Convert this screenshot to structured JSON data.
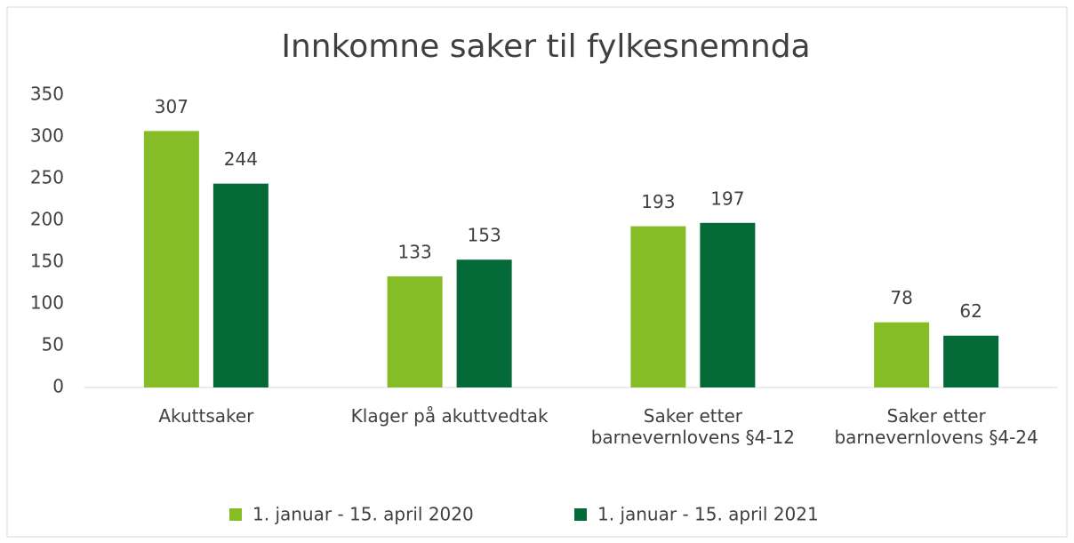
{
  "chart_data": {
    "type": "bar",
    "title": "Innkomne saker til fylkesnemnda",
    "categories": [
      "Akuttsaker",
      "Klager på akuttvedtak",
      "Saker etter barnevernlovens §4-12",
      "Saker etter barnevernlovens §4-24"
    ],
    "series": [
      {
        "name": "1. januar - 15. april 2020",
        "color": "#86bc25",
        "values": [
          307,
          133,
          193,
          78
        ]
      },
      {
        "name": "1. januar - 15. april 2021",
        "color": "#046a38",
        "values": [
          244,
          153,
          197,
          62
        ]
      }
    ],
    "ylim": [
      0,
      350
    ],
    "yticks": [
      0,
      50,
      100,
      150,
      200,
      250,
      300,
      350
    ],
    "grid": false,
    "legend": "bottom"
  }
}
